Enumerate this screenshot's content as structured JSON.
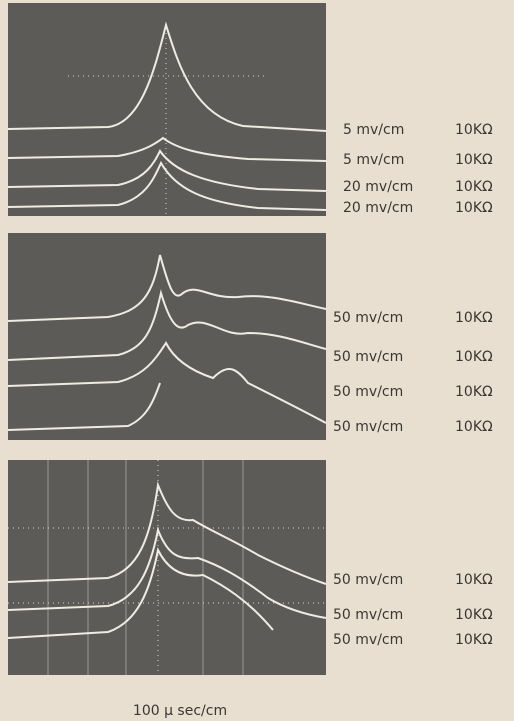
{
  "panels": [
    {
      "labels": [
        {
          "scale": "5 mv/cm",
          "resistance": "10KΩ"
        },
        {
          "scale": "5 mv/cm",
          "resistance": "10KΩ"
        },
        {
          "scale": "20 mv/cm",
          "resistance": "10KΩ"
        },
        {
          "scale": "20 mv/cm",
          "resistance": "10KΩ"
        }
      ]
    },
    {
      "labels": [
        {
          "scale": "50 mv/cm",
          "resistance": "10KΩ"
        },
        {
          "scale": "50 mv/cm",
          "resistance": "10KΩ"
        },
        {
          "scale": "50 mv/cm",
          "resistance": "10KΩ"
        },
        {
          "scale": "50 mv/cm",
          "resistance": "10KΩ"
        }
      ]
    },
    {
      "labels": [
        {
          "scale": "50 mv/cm",
          "resistance": "10KΩ"
        },
        {
          "scale": "50 mv/cm",
          "resistance": "10KΩ"
        },
        {
          "scale": "50 mv/cm",
          "resistance": "10KΩ"
        }
      ]
    }
  ],
  "caption": "100 μ sec/cm"
}
